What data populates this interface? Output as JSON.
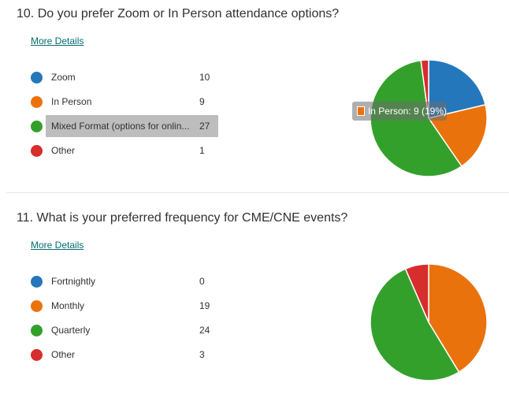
{
  "questions": [
    {
      "title": "10.  Do you prefer Zoom or In Person attendance options?",
      "more_details": "More Details",
      "options": [
        {
          "label": "Zoom",
          "count": "10",
          "color": "#2477ba"
        },
        {
          "label": "In Person",
          "count": "9",
          "color": "#ea720d"
        },
        {
          "label": "Mixed Format (options for onlin...",
          "count": "27",
          "color": "#33a02c"
        },
        {
          "label": "Other",
          "count": "1",
          "color": "#d62d2d"
        }
      ],
      "highlighted_index": 2,
      "tooltip": "In Person: 9 (19%)"
    },
    {
      "title": "11.  What is your preferred frequency for CME/CNE events?",
      "more_details": "More Details",
      "options": [
        {
          "label": "Fortnightly",
          "count": "0",
          "color": "#2477ba"
        },
        {
          "label": "Monthly",
          "count": "19",
          "color": "#ea720d"
        },
        {
          "label": "Quarterly",
          "count": "24",
          "color": "#33a02c"
        },
        {
          "label": "Other",
          "count": "3",
          "color": "#d62d2d"
        }
      ]
    }
  ],
  "chart_data": [
    {
      "type": "pie",
      "categories": [
        "Zoom",
        "In Person",
        "Mixed Format (options for onlin...",
        "Other"
      ],
      "values": [
        10,
        9,
        27,
        1
      ],
      "colors": [
        "#2477ba",
        "#ea720d",
        "#33a02c",
        "#d62d2d"
      ],
      "tooltip": "In Person: 9 (19%)"
    },
    {
      "type": "pie",
      "categories": [
        "Fortnightly",
        "Monthly",
        "Quarterly",
        "Other"
      ],
      "values": [
        0,
        19,
        24,
        3
      ],
      "colors": [
        "#2477ba",
        "#ea720d",
        "#33a02c",
        "#d62d2d"
      ]
    }
  ]
}
